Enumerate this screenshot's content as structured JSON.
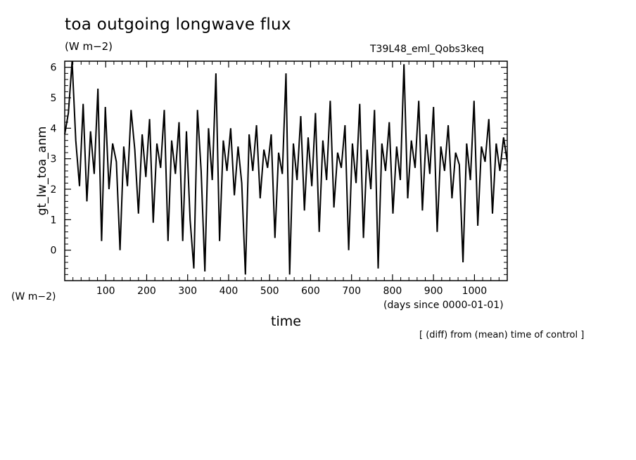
{
  "header": {
    "title": "toa outgoing longwave flux",
    "units": "(W m−2)",
    "run_name": "T39L48_eml_Qobs3keq"
  },
  "axes": {
    "y_units": "(W m−2)",
    "x_units": "(days since 0000-01-01)"
  },
  "footer": {
    "note": "[ (diff) from (mean) time of control ]"
  },
  "chart_data": {
    "type": "line",
    "title": "toa outgoing longwave flux",
    "subtitle": "T39L48_eml_Qobs3keq",
    "xlabel": "time",
    "ylabel": "gt_lw_toa_anm",
    "xlim": [
      0,
      1080
    ],
    "ylim": [
      -1,
      6.2
    ],
    "x_ticks": [
      100,
      200,
      300,
      400,
      500,
      600,
      700,
      800,
      900,
      1000
    ],
    "y_ticks": [
      0,
      1,
      2,
      3,
      4,
      5,
      6
    ],
    "grid": false,
    "series": [
      {
        "color": "#000000",
        "x": [
          0,
          9,
          18,
          27,
          36,
          45,
          54,
          63,
          72,
          81,
          90,
          99,
          108,
          117,
          126,
          135,
          144,
          153,
          162,
          171,
          180,
          189,
          198,
          207,
          216,
          225,
          234,
          243,
          252,
          261,
          270,
          279,
          288,
          297,
          306,
          315,
          324,
          333,
          342,
          351,
          360,
          369,
          378,
          387,
          396,
          405,
          414,
          423,
          432,
          441,
          450,
          459,
          468,
          477,
          486,
          495,
          504,
          513,
          522,
          531,
          540,
          549,
          558,
          567,
          576,
          585,
          594,
          603,
          612,
          621,
          630,
          639,
          648,
          657,
          666,
          675,
          684,
          693,
          702,
          711,
          720,
          729,
          738,
          747,
          756,
          765,
          774,
          783,
          792,
          801,
          810,
          819,
          828,
          837,
          846,
          855,
          864,
          873,
          882,
          891,
          900,
          909,
          918,
          927,
          936,
          945,
          954,
          963,
          972,
          981,
          990,
          999,
          1008,
          1017,
          1026,
          1035,
          1044,
          1053,
          1062,
          1071,
          1080
        ],
        "values": [
          3.8,
          4.5,
          6.2,
          3.6,
          2.1,
          4.8,
          1.6,
          3.9,
          2.5,
          5.3,
          0.3,
          4.7,
          2.0,
          3.5,
          2.9,
          0.0,
          3.4,
          2.1,
          4.6,
          3.3,
          1.2,
          3.8,
          2.4,
          4.3,
          0.9,
          3.5,
          2.7,
          4.6,
          0.3,
          3.6,
          2.5,
          4.2,
          0.3,
          3.9,
          1.0,
          -0.6,
          4.6,
          2.6,
          -0.7,
          4.0,
          2.3,
          5.8,
          0.3,
          3.6,
          2.6,
          4.0,
          1.8,
          3.4,
          2.2,
          -0.8,
          3.8,
          2.6,
          4.1,
          1.7,
          3.3,
          2.7,
          3.8,
          0.4,
          3.2,
          2.5,
          5.8,
          -0.8,
          3.5,
          2.3,
          4.4,
          1.3,
          3.7,
          2.1,
          4.5,
          0.6,
          3.6,
          2.3,
          4.9,
          1.4,
          3.2,
          2.7,
          4.1,
          0.0,
          3.5,
          2.2,
          4.8,
          0.4,
          3.3,
          2.0,
          4.6,
          -0.6,
          3.5,
          2.6,
          4.2,
          1.2,
          3.4,
          2.3,
          6.1,
          1.7,
          3.6,
          2.7,
          4.9,
          1.3,
          3.8,
          2.5,
          4.7,
          0.6,
          3.4,
          2.6,
          4.1,
          1.7,
          3.2,
          2.8,
          -0.4,
          3.5,
          2.3,
          4.9,
          0.8,
          3.4,
          2.9,
          4.3,
          1.2,
          3.5,
          2.6,
          3.7,
          2.9
        ]
      }
    ]
  }
}
